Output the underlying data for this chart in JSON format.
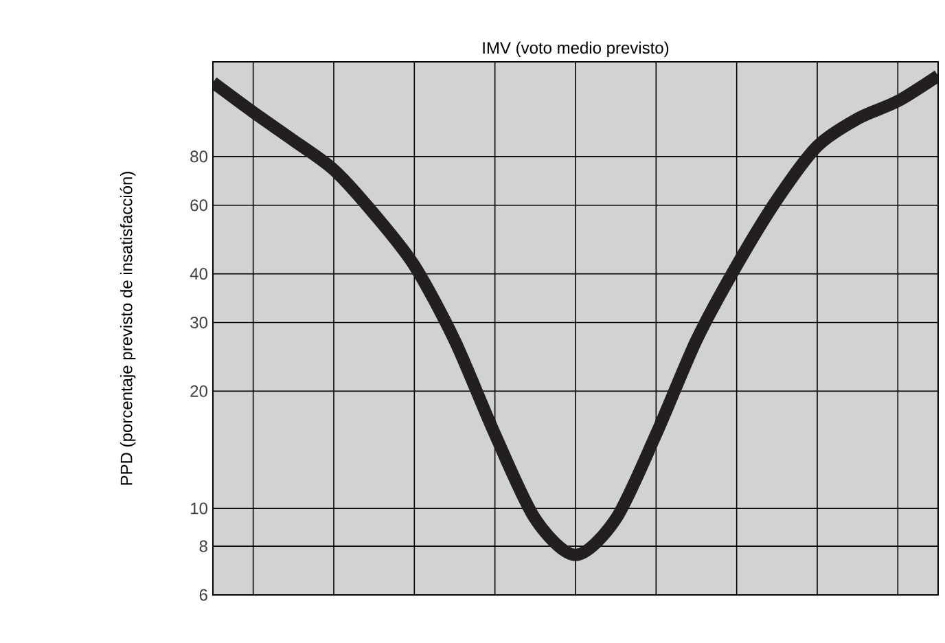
{
  "chart_data": {
    "type": "line",
    "xlabel": "IMV (voto medio previsto)",
    "ylabel": "PPD (porcentaje previsto de insatisfacción)",
    "categories": [
      null,
      null,
      null,
      null,
      null,
      null,
      null,
      null,
      null,
      null,
      null,
      null,
      null,
      null,
      null,
      null,
      null,
      null,
      null
    ],
    "series": [
      {
        "color": "#231f20",
        "values": [
          124,
          104,
          88,
          74,
          57,
          42,
          27,
          15.5,
          9.4,
          7.6,
          9.4,
          15.5,
          27,
          42,
          62,
          85,
          100,
          111,
          129
        ]
      }
    ],
    "log": true,
    "ylim": [
      6,
      140
    ],
    "yticks": [
      6,
      8,
      10,
      20,
      30,
      40,
      60,
      80
    ],
    "grid": true,
    "marker": "none",
    "line_style": "solid"
  }
}
